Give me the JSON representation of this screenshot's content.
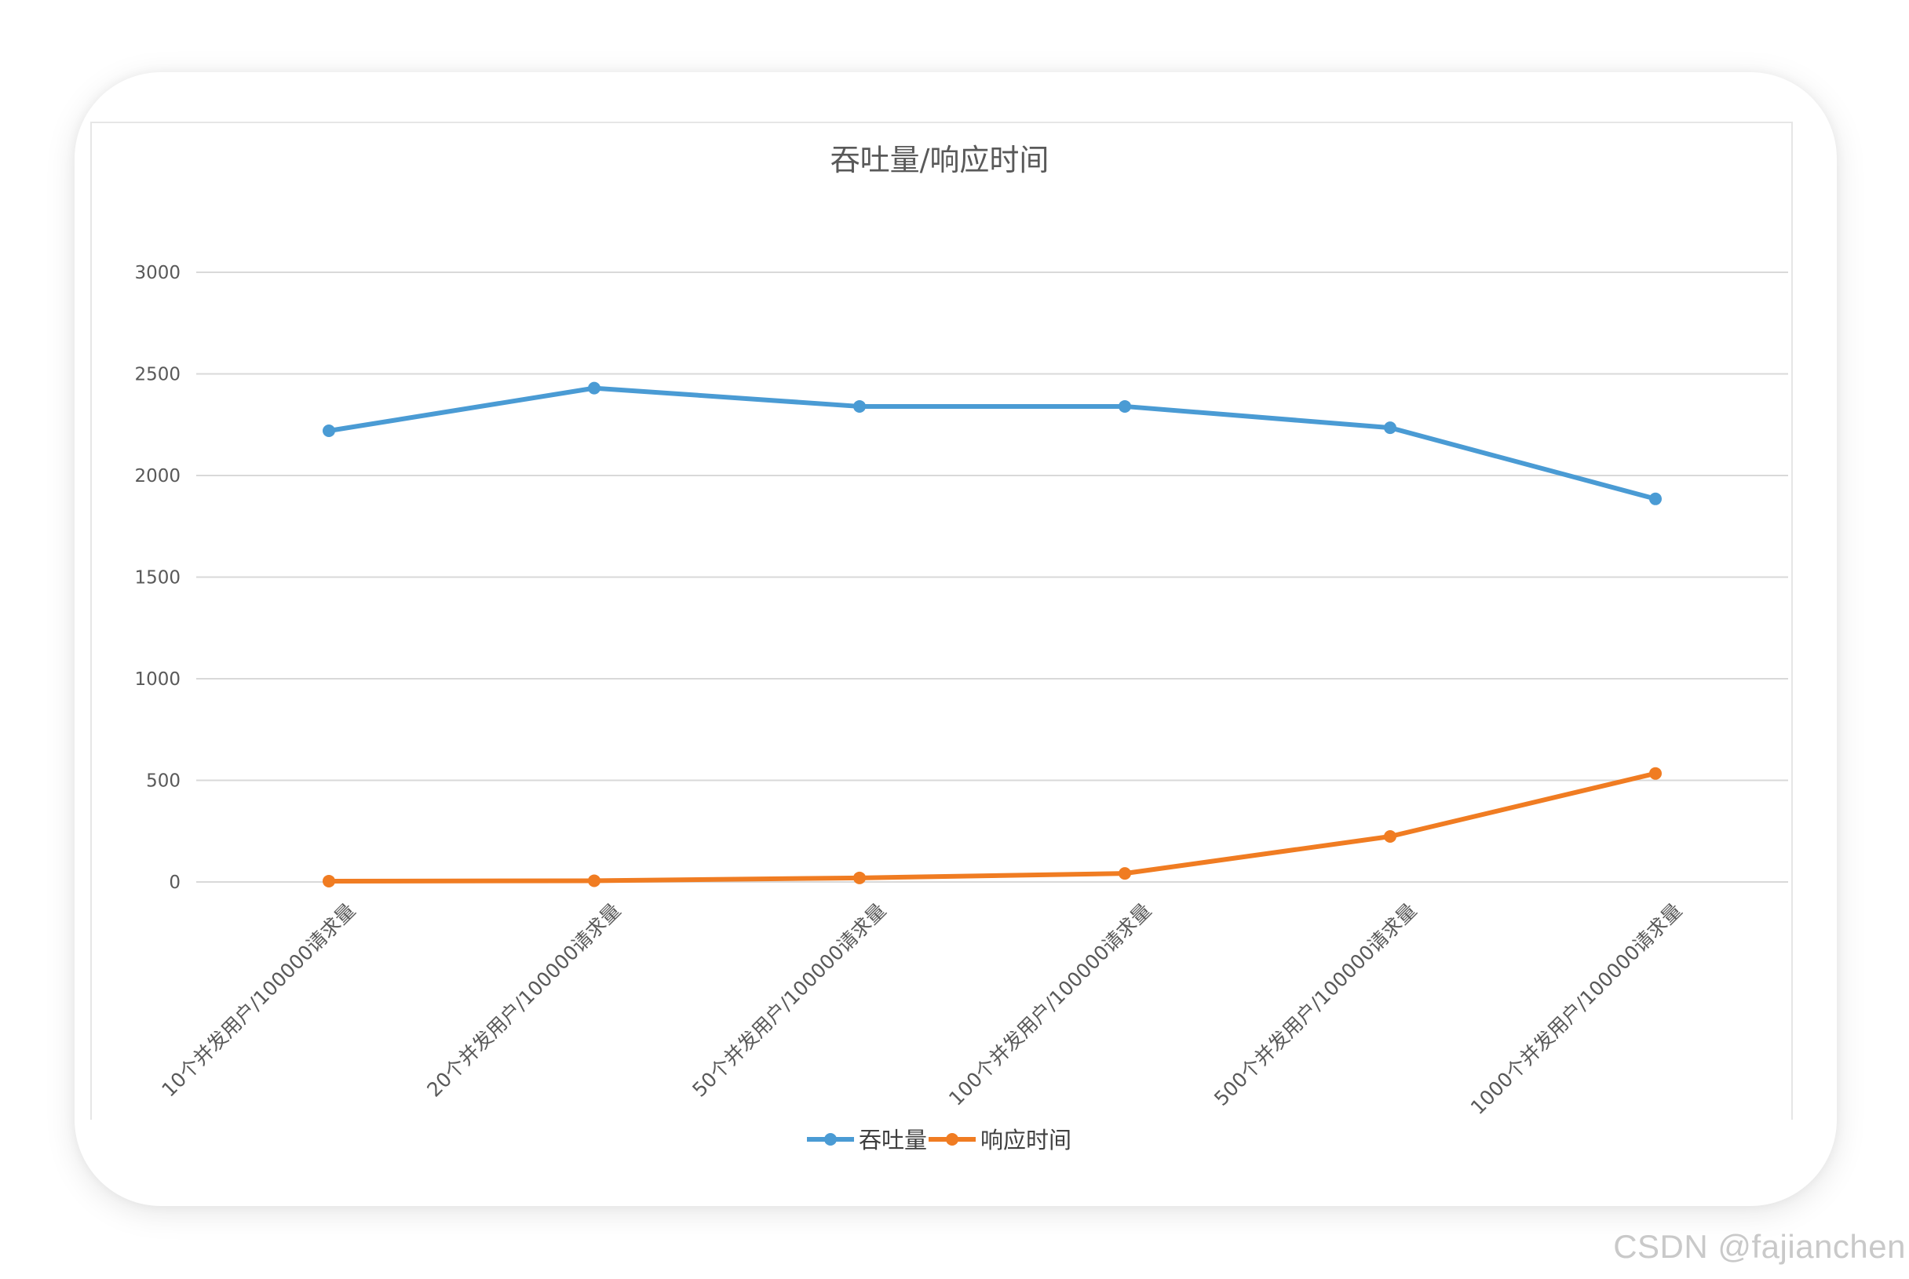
{
  "watermark": "CSDN @fajianchen",
  "chart_data": {
    "type": "line",
    "title": "吞吐量/响应时间",
    "categories": [
      "10个并发用户/100000请求量",
      "20个并发用户/100000请求量",
      "50个并发用户/100000请求量",
      "100个并发用户/100000请求量",
      "500个并发用户/100000请求量",
      "1000个并发用户/100000请求量"
    ],
    "series": [
      {
        "name": "吞吐量",
        "color": "#4a9bd4",
        "values": [
          2220,
          2430,
          2340,
          2340,
          2235,
          1885
        ]
      },
      {
        "name": "响应时间",
        "color": "#f07c22",
        "values": [
          4,
          6,
          20,
          42,
          224,
          534
        ]
      }
    ],
    "ylim": [
      0,
      3000
    ],
    "yticks": [
      0,
      500,
      1000,
      1500,
      2000,
      2500,
      3000
    ],
    "grid": true,
    "legend_position": "bottom"
  }
}
